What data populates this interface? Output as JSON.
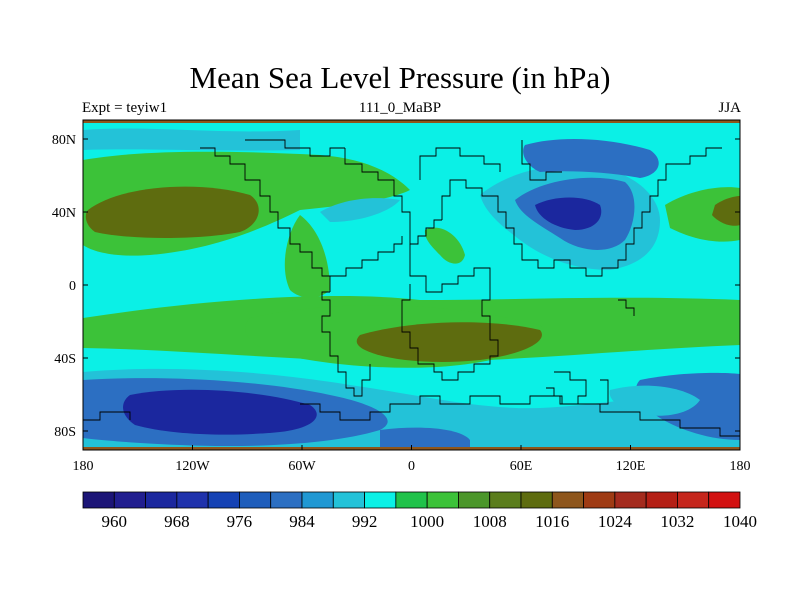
{
  "title": "Mean Sea Level Pressure (in hPa)",
  "left_label": "Expt = teyiw1",
  "center_label": "111_0_MaBP",
  "right_label": "JJA",
  "lat_ticks": [
    "80N",
    "40N",
    "0",
    "40S",
    "80S"
  ],
  "lon_ticks": [
    "180",
    "120W",
    "60W",
    "0",
    "60E",
    "120E",
    "180"
  ],
  "colorbar": {
    "colors": [
      "#1c1577",
      "#211e8f",
      "#1b279e",
      "#1f32ac",
      "#1542b4",
      "#1e5dbb",
      "#2c6fc2",
      "#2098d3",
      "#23c2d8",
      "#0bf0e6",
      "#20c24a",
      "#3cc239",
      "#4b962a",
      "#5b7d1c",
      "#5e6c0f",
      "#8e561c",
      "#9f3b14",
      "#a42b1e",
      "#b41f15",
      "#c5261c",
      "#d21111"
    ],
    "labels": [
      "960",
      "968",
      "976",
      "984",
      "992",
      "1000",
      "1008",
      "1016",
      "1024",
      "1032",
      "1040"
    ]
  },
  "colors": {
    "ocean": "#0bf0e6",
    "land_mid": "#23c2d8",
    "green": "#3cc239",
    "olive": "#5e6c0f",
    "mid_blue": "#2c6fc2",
    "deep_blue": "#1b279e"
  },
  "chart_data": {
    "type": "contour-map",
    "variable": "Mean Sea Level Pressure",
    "units": "hPa",
    "season": "JJA",
    "lon_range": [
      -180,
      180
    ],
    "lat_range": [
      -90,
      90
    ],
    "contour_levels": [
      956,
      960,
      964,
      968,
      972,
      976,
      980,
      984,
      988,
      992,
      996,
      1000,
      1004,
      1008,
      1012,
      1016,
      1020,
      1024,
      1028,
      1032,
      1036,
      1040
    ]
  }
}
